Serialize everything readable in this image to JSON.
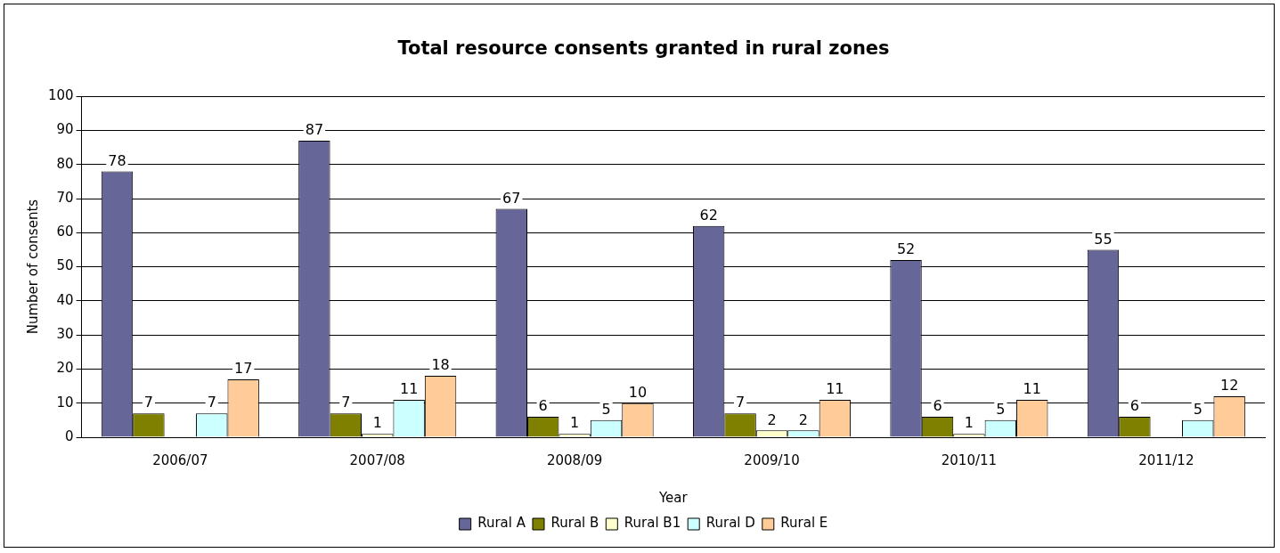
{
  "chart_data": {
    "type": "bar",
    "title": "Total resource consents granted in rural zones",
    "xlabel": "Year",
    "ylabel": "Number of consents",
    "categories": [
      "2006/07",
      "2007/08",
      "2008/09",
      "2009/10",
      "2010/11",
      "2011/12"
    ],
    "series": [
      {
        "name": "Rural A",
        "color": "#666699",
        "values": [
          78,
          87,
          67,
          62,
          52,
          55
        ]
      },
      {
        "name": "Rural B",
        "color": "#808000",
        "values": [
          7,
          7,
          6,
          7,
          6,
          6
        ]
      },
      {
        "name": "Rural B1",
        "color": "#ffffcc",
        "values": [
          null,
          1,
          1,
          2,
          1,
          null
        ]
      },
      {
        "name": "Rural D",
        "color": "#ccffff",
        "values": [
          7,
          11,
          5,
          2,
          5,
          5
        ]
      },
      {
        "name": "Rural E",
        "color": "#ffcc99",
        "values": [
          17,
          18,
          10,
          11,
          11,
          12
        ]
      }
    ],
    "ylim": [
      0,
      100
    ],
    "yticks": [
      0,
      10,
      20,
      30,
      40,
      50,
      60,
      70,
      80,
      90,
      100
    ],
    "grid": "y",
    "legend": "bottom",
    "data_labels": true
  }
}
